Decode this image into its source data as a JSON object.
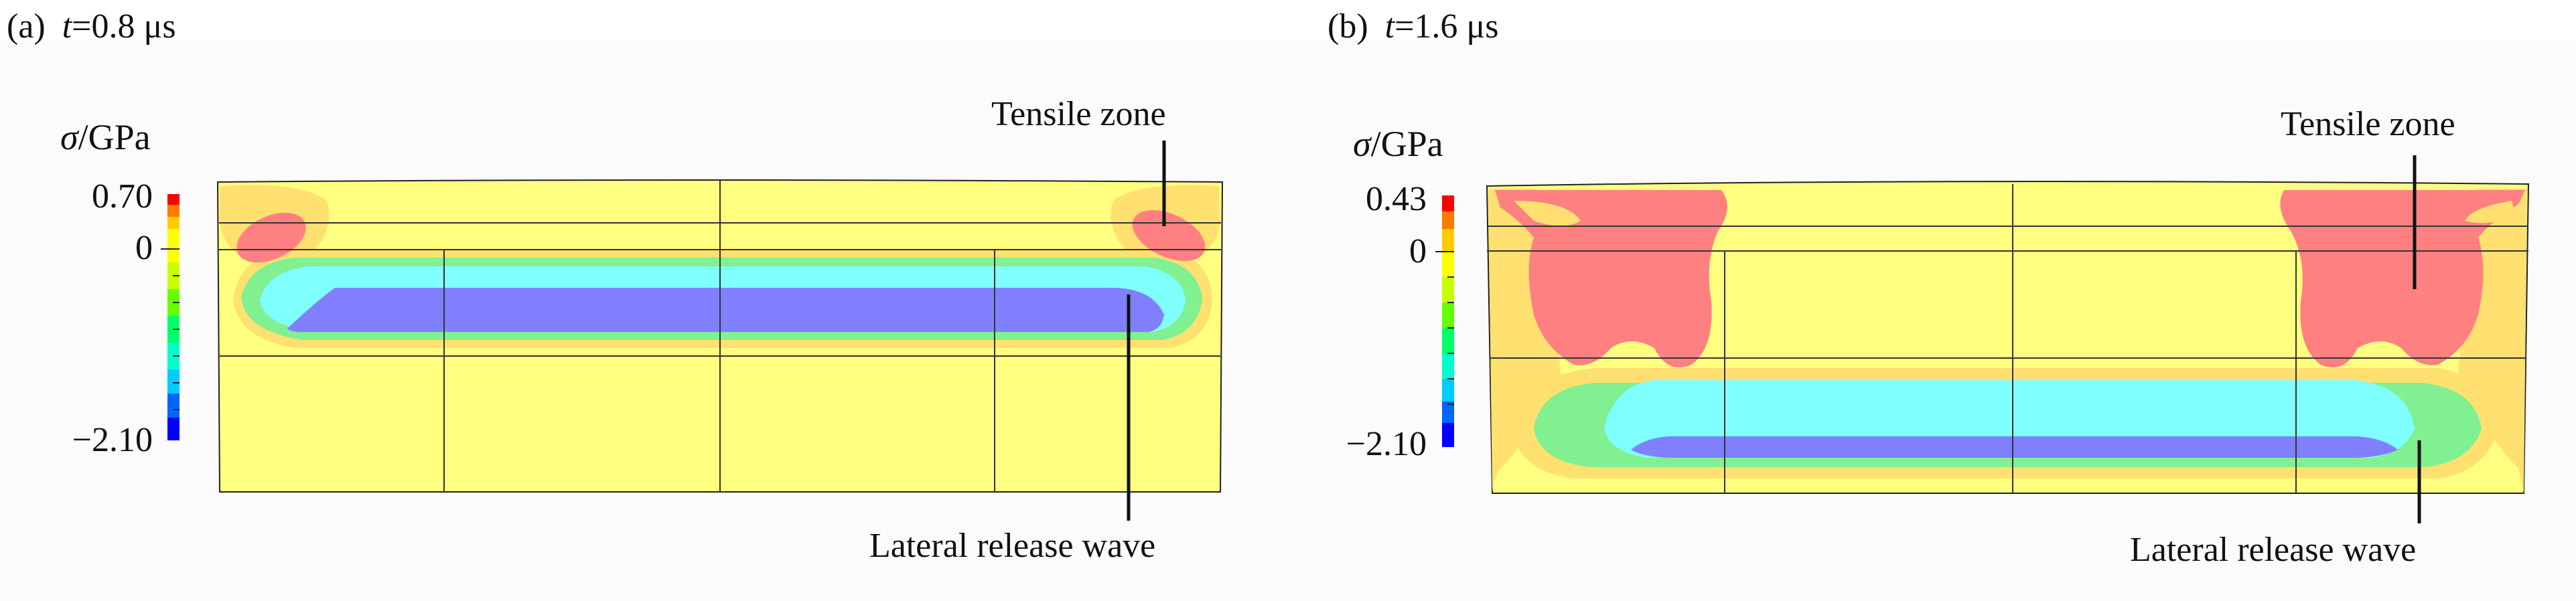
{
  "panels": [
    {
      "label": "(a)",
      "time_symbol": "t",
      "time_value": "=0.8 μs",
      "colorbar": {
        "symbol": "σ",
        "unit": "/GPa",
        "max": "0.70",
        "zero": "0",
        "min": "−2.10"
      },
      "annotations": {
        "tensile": "Tensile zone",
        "release": "Lateral release wave"
      }
    },
    {
      "label": "(b)",
      "time_symbol": "t",
      "time_value": "=1.6 μs",
      "colorbar": {
        "symbol": "σ",
        "unit": "/GPa",
        "max": "0.43",
        "zero": "0",
        "min": "−2.10"
      },
      "annotations": {
        "tensile": "Tensile zone",
        "release": "Lateral release wave"
      }
    }
  ],
  "colors": {
    "background_field": "#ffff80",
    "outer_ring": "#ffe070",
    "tensile": "#ff8080",
    "green_band": "#7ff080",
    "cyan_band": "#80ffff",
    "blue_band": "#8080ff",
    "colorbar": [
      "#ff0000",
      "#ff7a00",
      "#ffcc00",
      "#ffff00",
      "#c8ff00",
      "#66ff00",
      "#00ff66",
      "#00ffcc",
      "#00ccff",
      "#0066ff",
      "#0000ff"
    ]
  }
}
